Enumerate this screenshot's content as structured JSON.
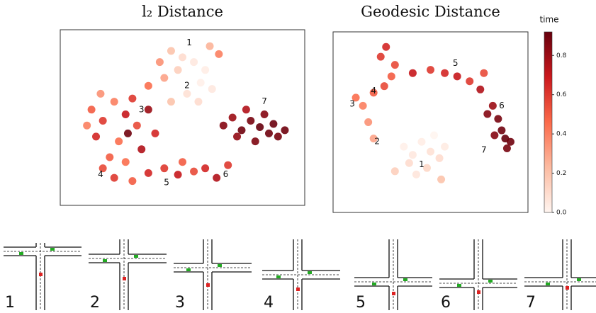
{
  "chart_data": [
    {
      "type": "scatter",
      "title": "l₂ Distance",
      "xlim": [
        0,
        100
      ],
      "ylim": [
        0,
        100
      ],
      "x": [
        45,
        50,
        55,
        60,
        48,
        42,
        58,
        63,
        52,
        40,
        66,
        62,
        35,
        45,
        57,
        10,
        15,
        20,
        25,
        30,
        12,
        22,
        32,
        18,
        28,
        35,
        8,
        38,
        26,
        14,
        15,
        20,
        28,
        35,
        42,
        48,
        55,
        60,
        65,
        70,
        25,
        50,
        68,
        72,
        76,
        80,
        84,
        88,
        92,
        86,
        90,
        78,
        74,
        95,
        82
      ],
      "y": [
        92,
        88,
        85,
        80,
        80,
        75,
        72,
        68,
        65,
        85,
        90,
        95,
        70,
        60,
        60,
        55,
        48,
        60,
        52,
        45,
        38,
        35,
        30,
        25,
        62,
        55,
        45,
        40,
        40,
        65,
        18,
        12,
        10,
        15,
        18,
        14,
        16,
        18,
        12,
        20,
        22,
        22,
        45,
        50,
        42,
        48,
        44,
        40,
        38,
        52,
        46,
        55,
        38,
        42,
        35
      ],
      "time": [
        0.2,
        0.1,
        0.05,
        0.03,
        0.15,
        0.3,
        0.02,
        0.05,
        0.08,
        0.35,
        0.4,
        0.25,
        0.45,
        0.2,
        0.1,
        0.5,
        0.6,
        0.4,
        0.7,
        0.55,
        0.65,
        0.45,
        0.75,
        0.5,
        0.6,
        0.8,
        0.4,
        0.65,
        0.9,
        0.35,
        0.55,
        0.6,
        0.5,
        0.65,
        0.6,
        0.7,
        0.55,
        0.65,
        0.75,
        0.6,
        0.45,
        0.5,
        0.85,
        0.8,
        0.9,
        0.88,
        0.92,
        0.9,
        0.88,
        0.85,
        0.91,
        0.75,
        0.82,
        0.9,
        0.87
      ],
      "annotations": [
        {
          "text": "1",
          "x": 53,
          "y": 97
        },
        {
          "text": "2",
          "x": 52,
          "y": 70
        },
        {
          "text": "3",
          "x": 32,
          "y": 55
        },
        {
          "text": "4",
          "x": 14,
          "y": 14
        },
        {
          "text": "5",
          "x": 43,
          "y": 9
        },
        {
          "text": "6",
          "x": 69,
          "y": 14
        },
        {
          "text": "7",
          "x": 86,
          "y": 60
        }
      ]
    },
    {
      "type": "scatter",
      "title": "Geodesic Distance",
      "xlim": [
        0,
        100
      ],
      "ylim": [
        0,
        100
      ],
      "x": [
        35,
        40,
        45,
        50,
        55,
        48,
        42,
        58,
        52,
        38,
        30,
        56,
        18,
        15,
        12,
        8,
        18,
        24,
        28,
        22,
        30,
        40,
        50,
        58,
        65,
        72,
        78,
        80,
        25,
        85,
        82,
        88,
        90,
        92,
        86,
        95,
        93
      ],
      "y": [
        35,
        30,
        38,
        32,
        28,
        22,
        18,
        35,
        42,
        25,
        20,
        15,
        40,
        50,
        60,
        65,
        68,
        72,
        78,
        90,
        85,
        80,
        82,
        80,
        78,
        75,
        70,
        80,
        96,
        60,
        55,
        52,
        45,
        40,
        42,
        38,
        34
      ],
      "time": [
        0.02,
        0.05,
        0.03,
        0.08,
        0.1,
        0.12,
        0.06,
        0.04,
        0,
        0.1,
        0.15,
        0.2,
        0.3,
        0.35,
        0.4,
        0.45,
        0.5,
        0.55,
        0.5,
        0.6,
        0.55,
        0.7,
        0.6,
        0.65,
        0.7,
        0.6,
        0.75,
        0.55,
        0.65,
        0.8,
        0.85,
        0.88,
        0.9,
        0.92,
        0.85,
        0.9,
        0.88
      ],
      "annotations": [
        {
          "text": "1",
          "x": 45,
          "y": 24
        },
        {
          "text": "2",
          "x": 20,
          "y": 38
        },
        {
          "text": "3",
          "x": 6,
          "y": 61
        },
        {
          "text": "4",
          "x": 18,
          "y": 69
        },
        {
          "text": "5",
          "x": 64,
          "y": 86
        },
        {
          "text": "6",
          "x": 90,
          "y": 60
        },
        {
          "text": "7",
          "x": 80,
          "y": 33
        }
      ],
      "colorbar": {
        "label": "time",
        "lim": [
          0,
          0.92
        ],
        "ticks": [
          {
            "value": 0,
            "label": "0.0"
          },
          0.2,
          0.4,
          0.6,
          0.8
        ]
      }
    }
  ],
  "colormap": [
    "#fff5f0",
    "#fcbba1",
    "#fb6a4a",
    "#cb181d",
    "#67000d"
  ],
  "scenarios": [
    "1",
    "2",
    "3",
    "4",
    "5",
    "6",
    "7"
  ]
}
